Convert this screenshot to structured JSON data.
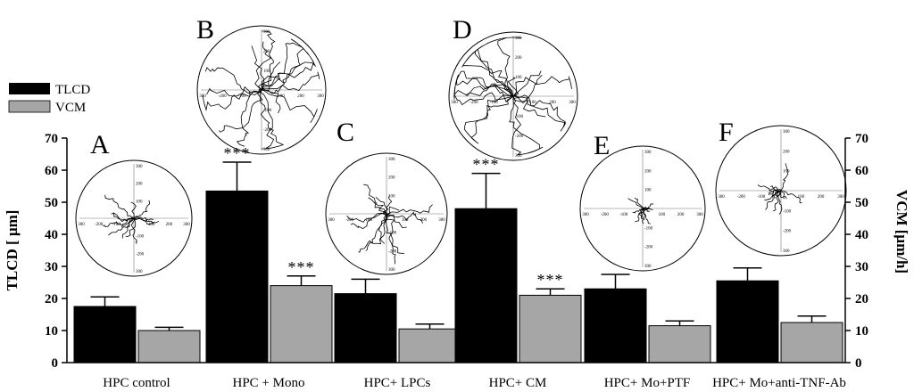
{
  "chart_data": {
    "type": "bar",
    "categories": [
      "HPC control",
      "HPC + Mono",
      "HPC+ LPCs",
      "HPC+ CM",
      "HPC+ Mo+PTF",
      "HPC+ Mo+anti-TNF-Ab"
    ],
    "series": [
      {
        "name": "TLCD",
        "values": [
          17.5,
          53.5,
          21.5,
          48,
          23,
          25.5
        ],
        "errors": [
          3,
          9,
          4.5,
          11,
          4.5,
          4
        ],
        "significance": [
          "",
          "***",
          "",
          "***",
          "",
          ""
        ],
        "color": "#000000"
      },
      {
        "name": "VCM",
        "values": [
          10,
          24,
          10.5,
          21,
          11.5,
          12.5
        ],
        "errors": [
          1,
          3,
          1.5,
          2,
          1.5,
          2
        ],
        "significance": [
          "",
          "***",
          "",
          "***",
          "",
          ""
        ],
        "color": "#a6a6a6"
      }
    ],
    "ylabel": "TLCD [ μm]",
    "y2label": "VCM [μm/h]",
    "ylim": [
      0,
      70
    ],
    "y2lim": [
      0,
      70
    ],
    "yticks": [
      0,
      10,
      20,
      30,
      40,
      50,
      60,
      70
    ],
    "y2ticks": [
      0,
      10,
      20,
      30,
      40,
      50,
      60,
      70
    ],
    "legend_position": "top-left",
    "grid": false,
    "insets": [
      {
        "panel": "A",
        "ticks": [
          "300",
          "-200",
          "-100",
          "100",
          "200",
          "300"
        ]
      },
      {
        "panel": "B",
        "ticks": [
          "300",
          "-200",
          "-100",
          "100",
          "200",
          "300"
        ]
      },
      {
        "panel": "C",
        "ticks": [
          "300",
          "-200",
          "-100",
          "100",
          "200",
          "300"
        ]
      },
      {
        "panel": "D",
        "ticks": [
          "300",
          "-200",
          "-100",
          "100",
          "200",
          "300"
        ]
      },
      {
        "panel": "E",
        "ticks": [
          "300",
          "-200",
          "-100",
          "100",
          "200",
          "300"
        ]
      },
      {
        "panel": "F",
        "ticks": [
          "300",
          "-200",
          "-100",
          "100",
          "200",
          "300"
        ]
      }
    ]
  }
}
